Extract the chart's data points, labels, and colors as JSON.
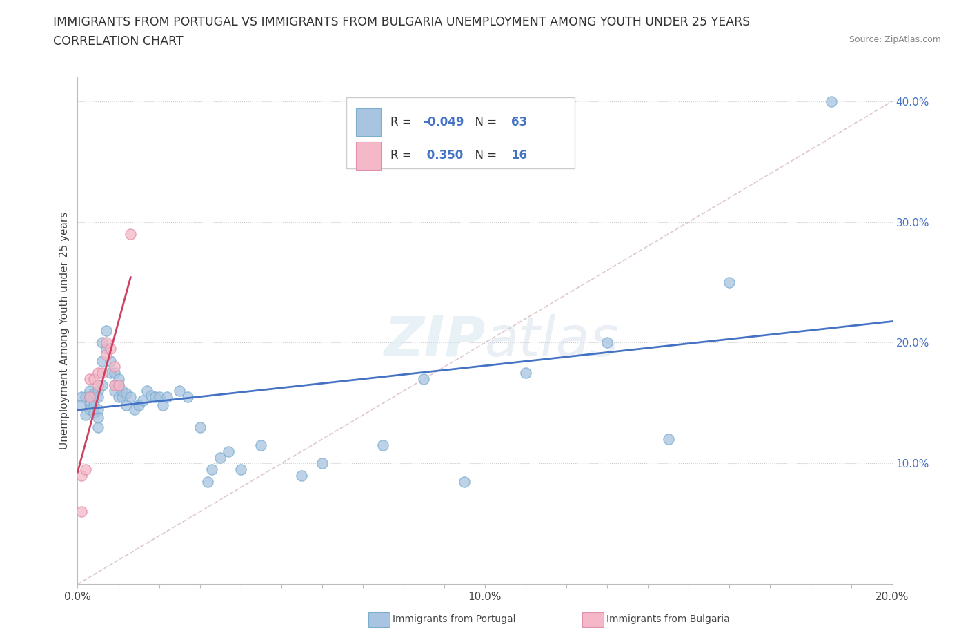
{
  "title_line1": "IMMIGRANTS FROM PORTUGAL VS IMMIGRANTS FROM BULGARIA UNEMPLOYMENT AMONG YOUTH UNDER 25 YEARS",
  "title_line2": "CORRELATION CHART",
  "source_text": "Source: ZipAtlas.com",
  "ylabel": "Unemployment Among Youth under 25 years",
  "xlim": [
    0.0,
    0.2
  ],
  "ylim": [
    0.0,
    0.42
  ],
  "portugal_color": "#a8c4e0",
  "portugal_edge_color": "#7aadd0",
  "bulgaria_color": "#f4b8c8",
  "bulgaria_edge_color": "#e090a8",
  "portugal_line_color": "#4472c4",
  "bulgaria_line_color": "#d04060",
  "diag_line_color": "#d8b8c0",
  "legend_R_portugal": "-0.049",
  "legend_N_portugal": "63",
  "legend_R_bulgaria": "0.350",
  "legend_N_bulgaria": "16",
  "watermark": "ZIPatlas",
  "background_color": "#ffffff",
  "portugal_x": [
    0.001,
    0.001,
    0.002,
    0.002,
    0.003,
    0.003,
    0.003,
    0.003,
    0.004,
    0.004,
    0.004,
    0.004,
    0.005,
    0.005,
    0.005,
    0.005,
    0.005,
    0.006,
    0.006,
    0.006,
    0.007,
    0.007,
    0.008,
    0.008,
    0.009,
    0.009,
    0.009,
    0.01,
    0.01,
    0.01,
    0.011,
    0.011,
    0.012,
    0.012,
    0.013,
    0.014,
    0.015,
    0.016,
    0.017,
    0.018,
    0.019,
    0.02,
    0.021,
    0.022,
    0.025,
    0.027,
    0.03,
    0.032,
    0.033,
    0.035,
    0.037,
    0.04,
    0.045,
    0.055,
    0.06,
    0.075,
    0.085,
    0.095,
    0.11,
    0.13,
    0.145,
    0.16,
    0.185
  ],
  "portugal_y": [
    0.155,
    0.148,
    0.14,
    0.155,
    0.155,
    0.16,
    0.15,
    0.145,
    0.152,
    0.158,
    0.148,
    0.142,
    0.16,
    0.155,
    0.145,
    0.138,
    0.13,
    0.2,
    0.185,
    0.165,
    0.195,
    0.21,
    0.175,
    0.185,
    0.165,
    0.175,
    0.16,
    0.17,
    0.165,
    0.155,
    0.155,
    0.16,
    0.148,
    0.158,
    0.155,
    0.145,
    0.148,
    0.152,
    0.16,
    0.156,
    0.155,
    0.155,
    0.148,
    0.155,
    0.16,
    0.155,
    0.13,
    0.085,
    0.095,
    0.105,
    0.11,
    0.095,
    0.115,
    0.09,
    0.1,
    0.115,
    0.17,
    0.085,
    0.175,
    0.2,
    0.12,
    0.25,
    0.4
  ],
  "bulgaria_x": [
    0.001,
    0.001,
    0.002,
    0.003,
    0.003,
    0.004,
    0.005,
    0.005,
    0.006,
    0.007,
    0.007,
    0.008,
    0.009,
    0.009,
    0.01,
    0.013
  ],
  "bulgaria_y": [
    0.09,
    0.06,
    0.095,
    0.17,
    0.155,
    0.17,
    0.175,
    0.165,
    0.175,
    0.2,
    0.19,
    0.195,
    0.165,
    0.18,
    0.165,
    0.29
  ]
}
